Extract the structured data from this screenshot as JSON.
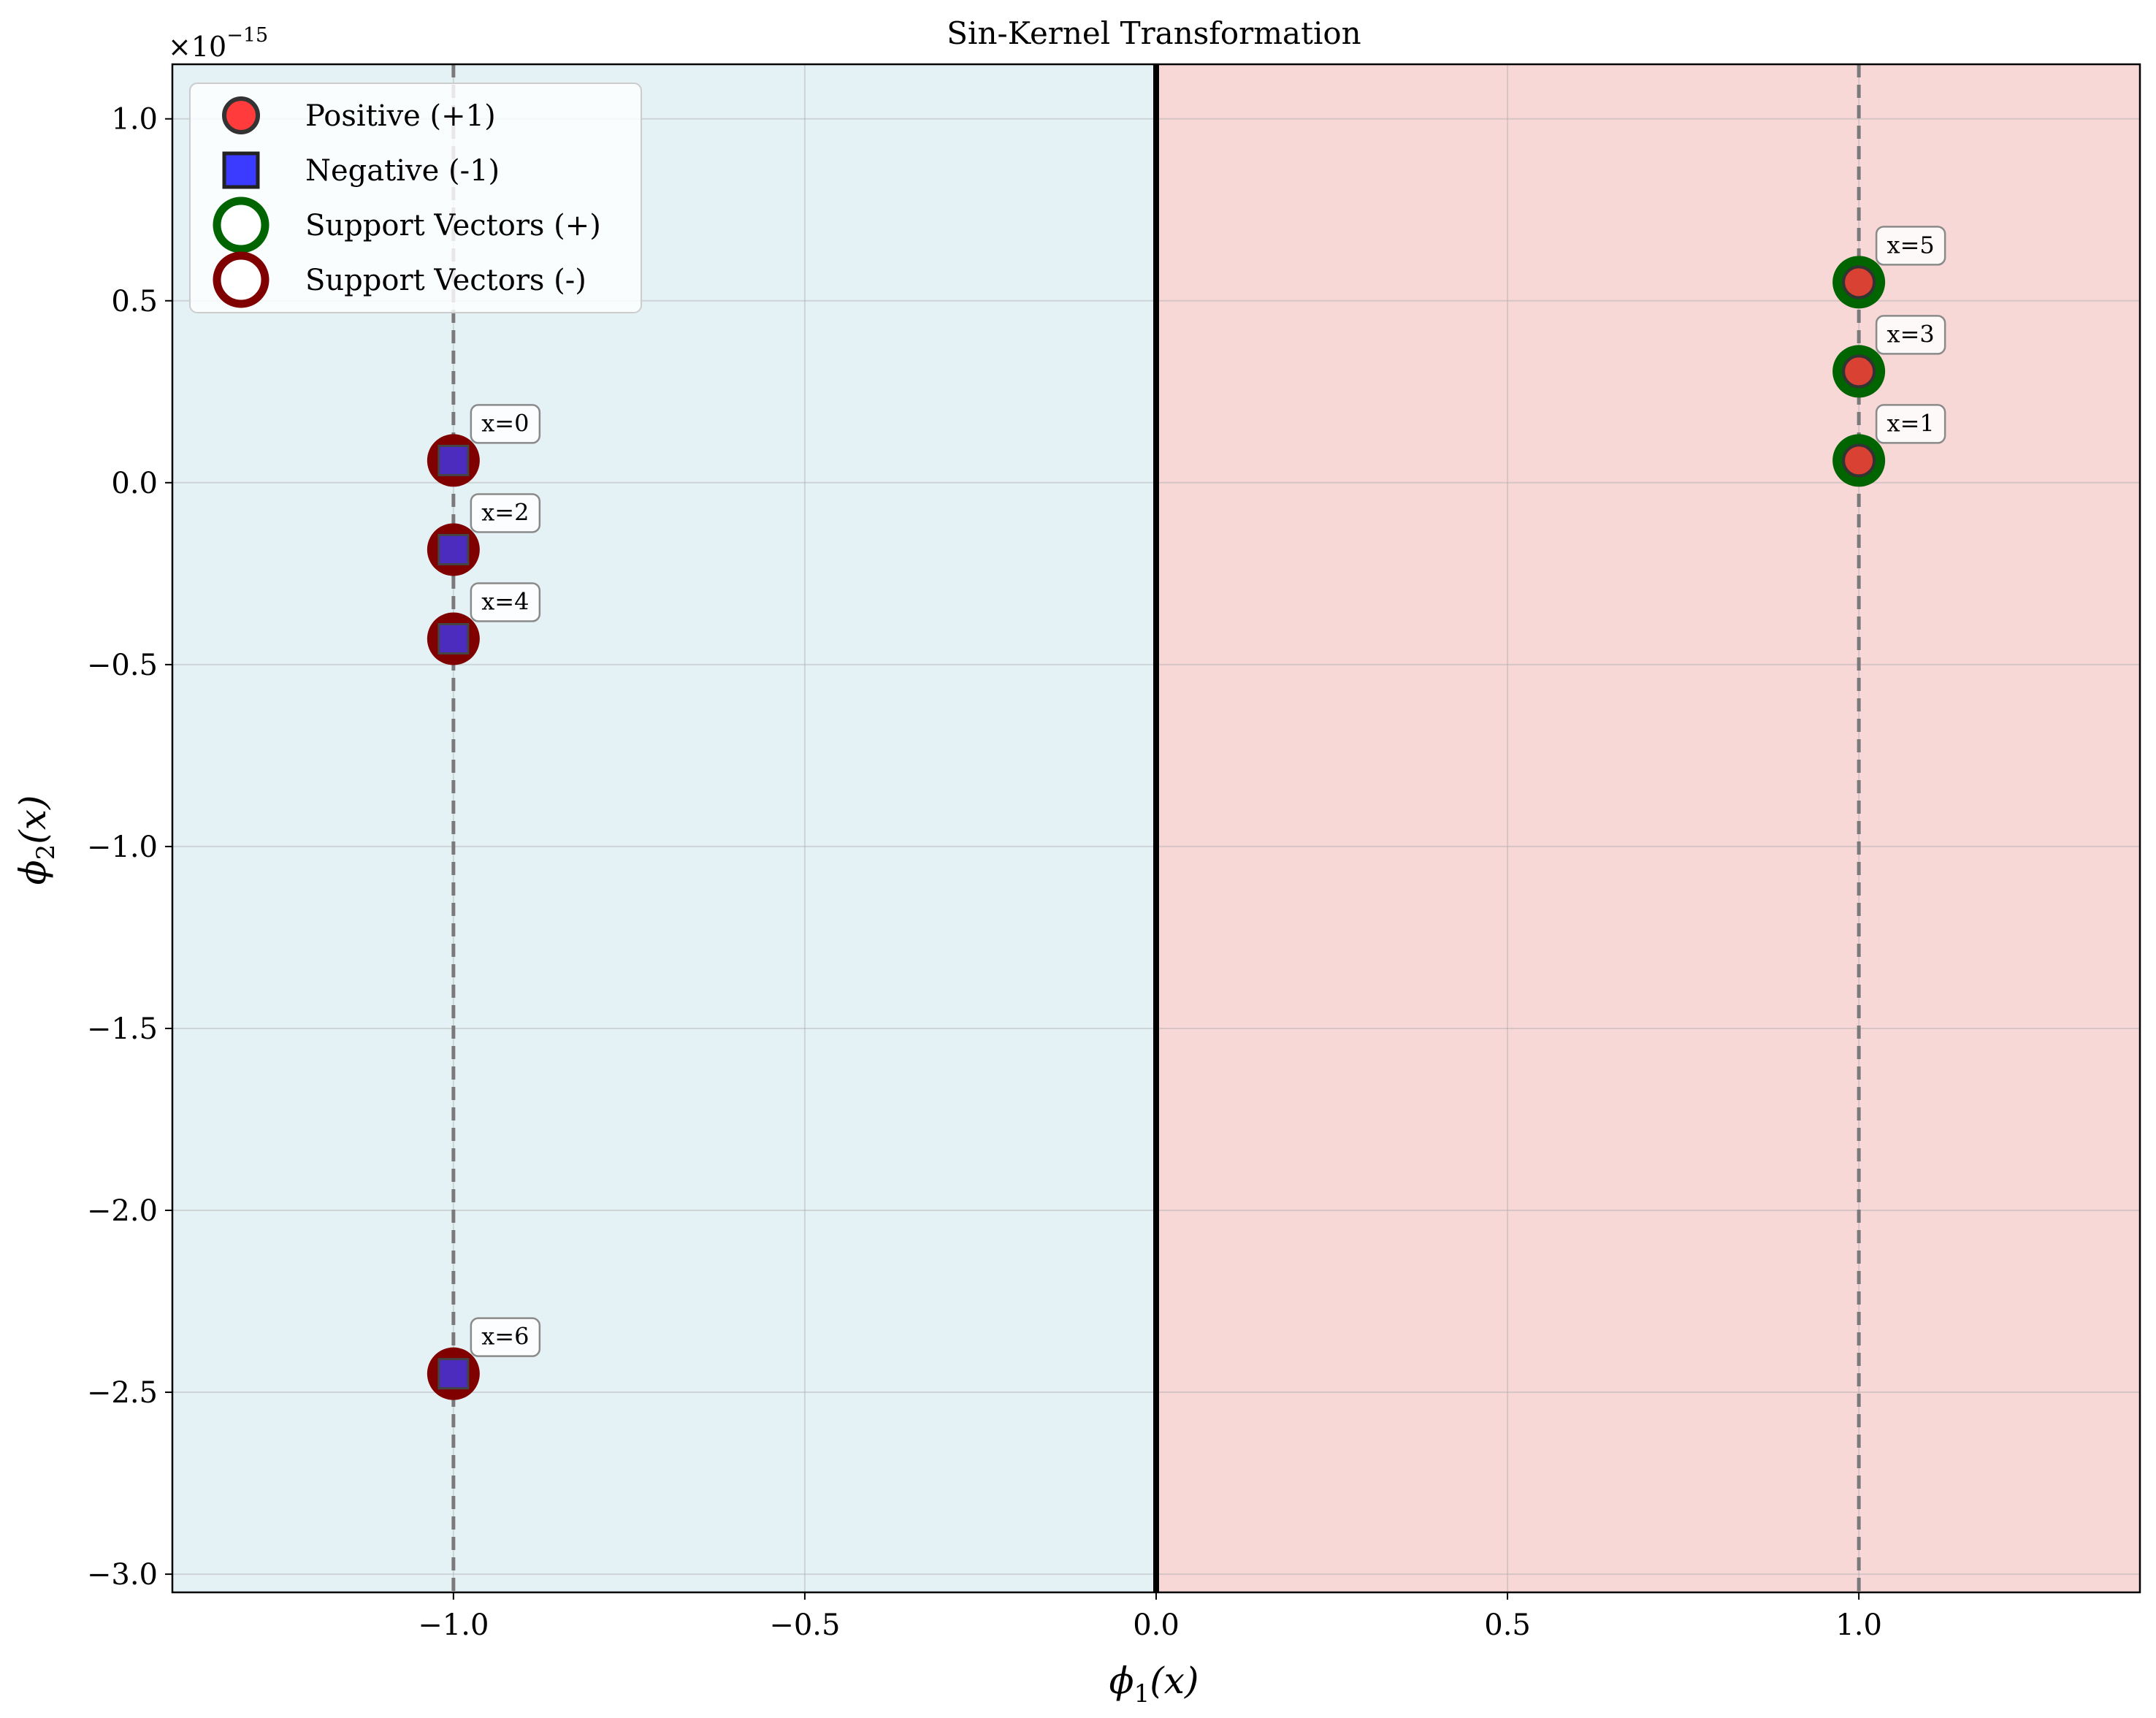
{
  "chart_data": {
    "type": "scatter",
    "title": "Sin-Kernel Transformation",
    "xlabel": "ϕ1(x)",
    "xlabel_main": "ϕ",
    "xlabel_sub": "1",
    "xlabel_rest": "(x)",
    "ylabel": "ϕ2(x)",
    "ylabel_main": "ϕ",
    "ylabel_sub": "2",
    "ylabel_rest": "(x)",
    "xlim": [
      -1.4,
      1.4
    ],
    "ylim": [
      -3.05,
      1.15
    ],
    "y_scale_label": "×10",
    "y_scale_exponent": "−15",
    "x_ticks": [
      -1.0,
      -0.5,
      0.0,
      0.5,
      1.0
    ],
    "x_tick_labels": [
      "−1.0",
      "−0.5",
      "0.0",
      "0.5",
      "1.0"
    ],
    "y_ticks": [
      1.0,
      0.5,
      0.0,
      -0.5,
      -1.0,
      -1.5,
      -2.0,
      -2.5,
      -3.0
    ],
    "y_tick_labels": [
      "1.0",
      "0.5",
      "0.0",
      "−0.5",
      "−1.0",
      "−1.5",
      "−2.0",
      "−2.5",
      "−3.0"
    ],
    "grid": true,
    "decision_boundary_x": 0.0,
    "margin_lines_x": [
      -1.0,
      1.0
    ],
    "regions": [
      {
        "name": "negative-region",
        "x_range": [
          -1.4,
          0.0
        ],
        "color": "#e4f2f6"
      },
      {
        "name": "positive-region",
        "x_range": [
          0.0,
          1.4
        ],
        "color": "#f8d7d7"
      }
    ],
    "series": [
      {
        "name": "Positive (+1)",
        "marker": "circle",
        "color": "#ff3b3b",
        "support_color": "#006400",
        "points": [
          {
            "x": 1.0,
            "y": 0.061,
            "label": "x=1"
          },
          {
            "x": 1.0,
            "y": 0.306,
            "label": "x=3"
          },
          {
            "x": 1.0,
            "y": 0.551,
            "label": "x=5"
          }
        ]
      },
      {
        "name": "Negative (-1)",
        "marker": "square",
        "color": "#3b3bff",
        "support_color": "#800000",
        "points": [
          {
            "x": -1.0,
            "y": 0.061,
            "label": "x=0"
          },
          {
            "x": -1.0,
            "y": -0.184,
            "label": "x=2"
          },
          {
            "x": -1.0,
            "y": -0.429,
            "label": "x=4"
          },
          {
            "x": -1.0,
            "y": -2.449,
            "label": "x=6"
          }
        ]
      }
    ],
    "legend": {
      "placement": "top-left",
      "entries": [
        {
          "label": "Positive (+1)",
          "marker": "circle-filled",
          "color": "#ff3b3b"
        },
        {
          "label": "Negative (-1)",
          "marker": "square-filled",
          "color": "#3b3bff"
        },
        {
          "label": "Support Vectors (+)",
          "marker": "ring",
          "color": "#006400"
        },
        {
          "label": "Support Vectors (-)",
          "marker": "ring",
          "color": "#800000"
        }
      ]
    }
  }
}
